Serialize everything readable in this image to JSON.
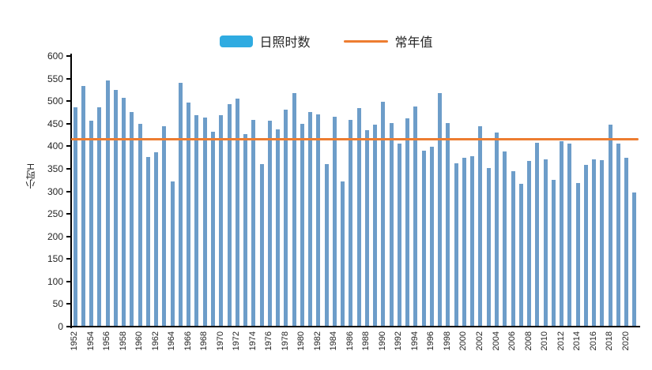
{
  "legend": {
    "series_label": "日照时数",
    "normal_label": "常年值"
  },
  "colors": {
    "bar": "#6D9DC9",
    "legend_swatch": "#2FABE1",
    "normal_line": "#ED7D31",
    "axis": "#000000",
    "text": "#262626"
  },
  "chart_data": {
    "type": "bar",
    "title": "",
    "xlabel": "",
    "ylabel": "小时H",
    "ylim": [
      0,
      600
    ],
    "ytick_step": 50,
    "grid": false,
    "legend_position": "top-center",
    "x_tick_interval": 2,
    "categories": [
      "1952",
      "1953",
      "1954",
      "1955",
      "1956",
      "1957",
      "1958",
      "1959",
      "1960",
      "1961",
      "1962",
      "1963",
      "1964",
      "1965",
      "1966",
      "1967",
      "1968",
      "1969",
      "1970",
      "1971",
      "1972",
      "1973",
      "1974",
      "1975",
      "1976",
      "1977",
      "1978",
      "1979",
      "1980",
      "1981",
      "1982",
      "1983",
      "1984",
      "1985",
      "1986",
      "1987",
      "1988",
      "1989",
      "1990",
      "1991",
      "1992",
      "1993",
      "1994",
      "1995",
      "1996",
      "1997",
      "1998",
      "1999",
      "2000",
      "2001",
      "2002",
      "2003",
      "2004",
      "2005",
      "2006",
      "2007",
      "2008",
      "2009",
      "2010",
      "2011",
      "2012",
      "2013",
      "2014",
      "2015",
      "2016",
      "2017",
      "2018",
      "2019",
      "2020",
      "2021"
    ],
    "x_tick_labels": [
      "1952",
      "1954",
      "1956",
      "1958",
      "1960",
      "1962",
      "1964",
      "1966",
      "1968",
      "1970",
      "1972",
      "1974",
      "1976",
      "1978",
      "1980",
      "1982",
      "1984",
      "1986",
      "1988",
      "1990",
      "1992",
      "1994",
      "1996",
      "1998",
      "2000",
      "2002",
      "2004",
      "2006",
      "2008",
      "2010",
      "2012",
      "2014",
      "2016",
      "2018",
      "2020"
    ],
    "series": [
      {
        "name": "日照时数",
        "type": "bar",
        "values": [
          486,
          533,
          456,
          486,
          545,
          524,
          507,
          475,
          450,
          376,
          387,
          444,
          322,
          541,
          497,
          468,
          463,
          432,
          468,
          494,
          505,
          427,
          458,
          361,
          457,
          438,
          481,
          517,
          449,
          475,
          470,
          361,
          466,
          322,
          458,
          485,
          436,
          448,
          499,
          451,
          405,
          462,
          488,
          390,
          398,
          517,
          452,
          362,
          375,
          377,
          444,
          352,
          431,
          389,
          344,
          317,
          368,
          407,
          370,
          326,
          411,
          405,
          318,
          359,
          371,
          369,
          447,
          406,
          374,
          298
        ]
      },
      {
        "name": "常年值",
        "type": "line",
        "value": 416
      }
    ]
  }
}
